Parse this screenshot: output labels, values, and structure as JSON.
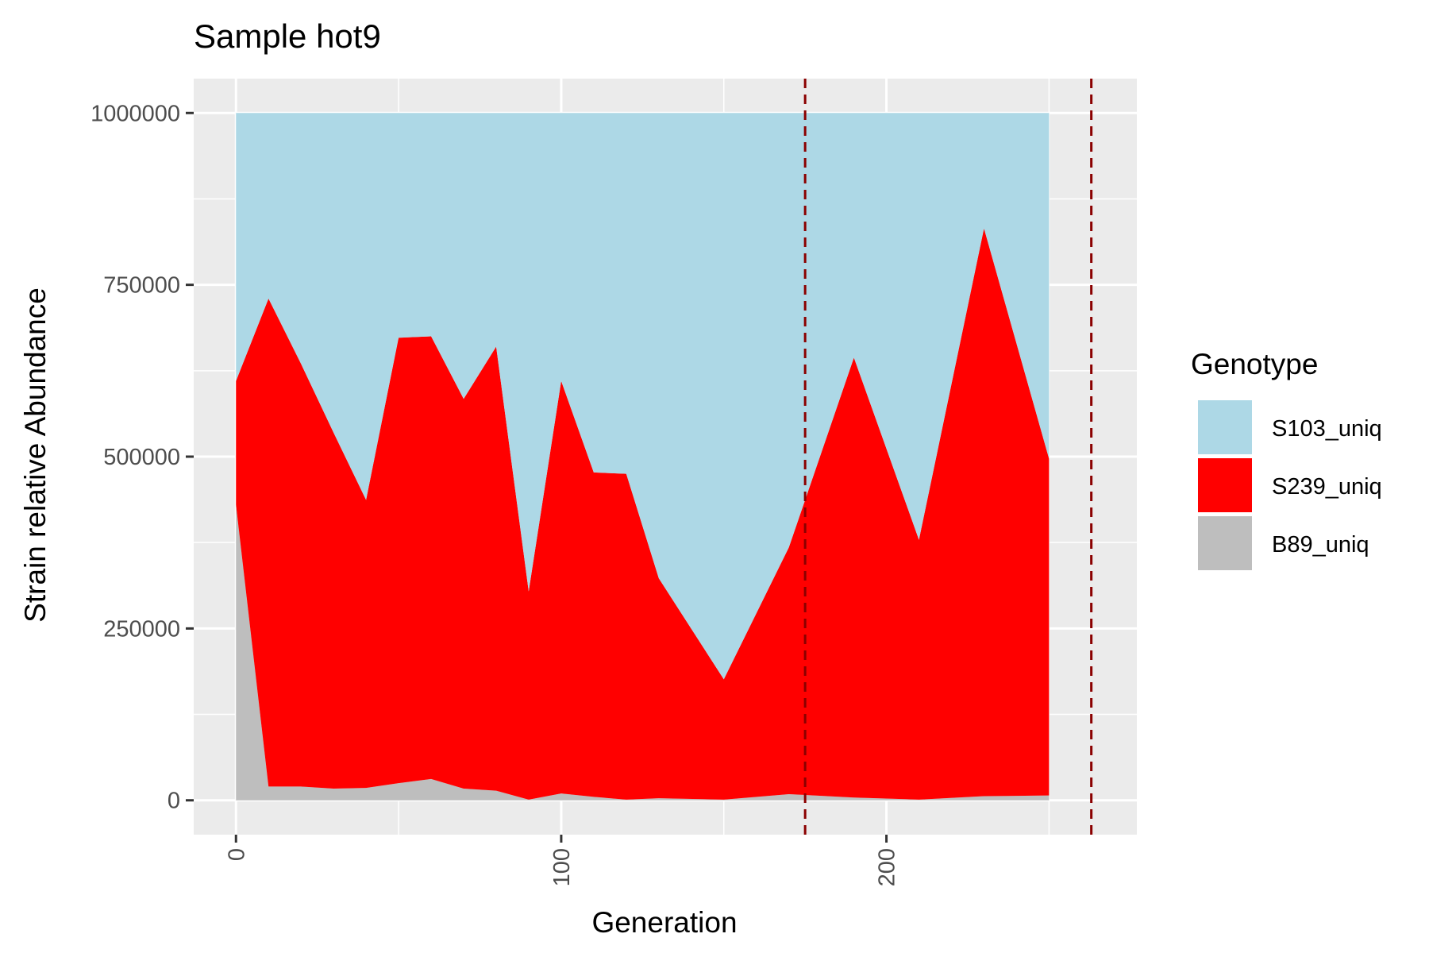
{
  "chart_data": {
    "type": "area",
    "stacked": true,
    "title": "Sample hot9",
    "xlabel": "Generation",
    "ylabel": "Strain relative Abundance",
    "xlim": [
      -13,
      277
    ],
    "ylim": [
      -50000,
      1050000
    ],
    "x_ticks": [
      0,
      100,
      200
    ],
    "x_tick_labels": [
      "0",
      "100",
      "200"
    ],
    "x_tick_label_rotation": "vertical",
    "y_ticks": [
      0,
      250000,
      500000,
      750000,
      1000000
    ],
    "y_tick_labels": [
      "0",
      "250000",
      "500000",
      "750000",
      "1000000"
    ],
    "grid": true,
    "legend_title": "Genotype",
    "legend_position": "right",
    "x": [
      0,
      10,
      20,
      30,
      40,
      50,
      60,
      70,
      80,
      90,
      100,
      110,
      120,
      130,
      150,
      170,
      190,
      210,
      230,
      250
    ],
    "series": [
      {
        "name": "B89_uniq",
        "color": "#bebebe",
        "values": [
          430000,
          20000,
          20000,
          17000,
          18000,
          25000,
          31000,
          17000,
          14000,
          1000,
          10000,
          5000,
          1000,
          3000,
          1000,
          9000,
          4000,
          1000,
          6000,
          7000
        ]
      },
      {
        "name": "S239_uniq",
        "color": "#ff0000",
        "values": [
          180000,
          710000,
          615000,
          518000,
          419000,
          648000,
          644000,
          567000,
          646000,
          303000,
          600000,
          472000,
          474000,
          320000,
          175000,
          359000,
          640000,
          378000,
          826000,
          490000
        ]
      },
      {
        "name": "S103_uniq",
        "color": "#add8e6",
        "values": [
          390000,
          270000,
          365000,
          465000,
          563000,
          327000,
          325000,
          416000,
          340000,
          696000,
          390000,
          523000,
          525000,
          677000,
          824000,
          632000,
          356000,
          621000,
          168000,
          503000
        ]
      }
    ],
    "legend_order": [
      "S103_uniq",
      "S239_uniq",
      "B89_uniq"
    ],
    "vlines": [
      {
        "x": 175,
        "color": "#8b0000",
        "style": "dashed"
      },
      {
        "x": 263,
        "color": "#8b0000",
        "style": "dashed"
      }
    ],
    "panel_background": "#ebebeb",
    "grid_color": "#ffffff"
  }
}
